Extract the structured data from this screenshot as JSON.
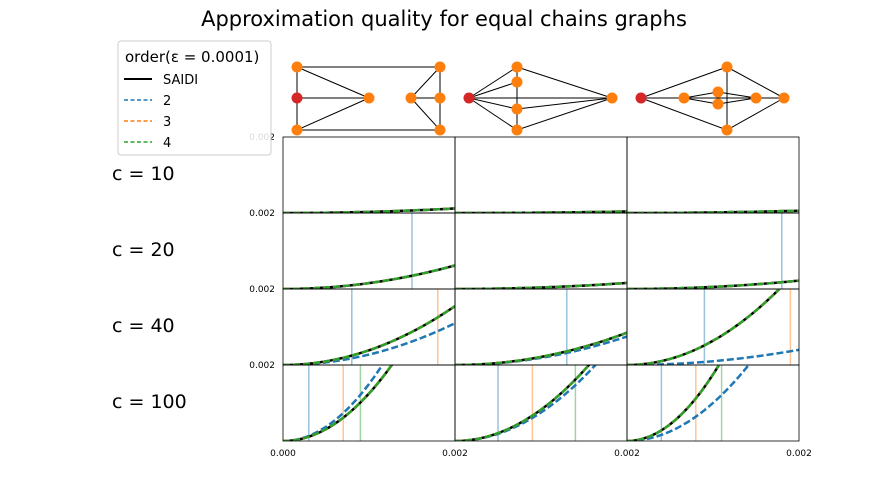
{
  "title": "Approximation quality for equal chains graphs",
  "legend": {
    "title": "order(ε = 0.0001)",
    "entries": [
      {
        "label": "SAIDI",
        "color": "#000000",
        "style": "solid"
      },
      {
        "label": "2",
        "color": "#1f77b4",
        "style": "dashed"
      },
      {
        "label": "3",
        "color": "#ff7f0e",
        "style": "dashed"
      },
      {
        "label": "4",
        "color": "#2ca02c",
        "style": "dashed"
      }
    ]
  },
  "colors": {
    "red_node": "#d62728",
    "orange_node": "#ff7f0e",
    "blue": "#1f77b4",
    "orange": "#ff7f0e",
    "green": "#2ca02c"
  },
  "chart_data": {
    "type": "line",
    "title": "Approximation quality for equal chains graphs",
    "row_labels": [
      "c = 10",
      "c = 20",
      "c = 40",
      "c = 100"
    ],
    "x_tick_labels": [
      "0.000",
      "0.002",
      "0.002",
      "0.002"
    ],
    "y_tick_label": "0.002",
    "xlim": [
      0,
      0.002
    ],
    "ylim": [
      0,
      0.002
    ],
    "series": [
      {
        "name": "SAIDI",
        "panels": [
          [
            0.00012,
            4e-05,
            6e-05
          ],
          [
            0.00062,
            0.00016,
            0.00022
          ],
          [
            0.00155,
            0.00085,
            0.00255
          ],
          [
            0.005,
            0.0033,
            0.007
          ]
        ]
      },
      {
        "name": "2",
        "panels": [
          [
            0.00012,
            4e-05,
            6e-05
          ],
          [
            0.00062,
            0.00016,
            0.00022
          ],
          [
            0.0011,
            0.00075,
            0.0004
          ],
          [
            0.006,
            0.003,
            0.004
          ]
        ]
      },
      {
        "name": "3",
        "panels": [
          [
            0.00012,
            4e-05,
            6e-05
          ],
          [
            0.00062,
            0.00016,
            0.00022
          ],
          [
            0.00155,
            0.00085,
            0.00255
          ],
          [
            0.005,
            0.0033,
            0.007
          ]
        ]
      },
      {
        "name": "4",
        "panels": [
          [
            0.00012,
            4e-05,
            6e-05
          ],
          [
            0.00062,
            0.00016,
            0.00022
          ],
          [
            0.00155,
            0.00085,
            0.00255
          ],
          [
            0.005,
            0.0033,
            0.007
          ]
        ]
      }
    ],
    "vlines": [
      [
        [],
        [],
        []
      ],
      [
        [
          {
            "series": "2",
            "x": 0.0015
          }
        ],
        [],
        [
          {
            "series": "2",
            "x": 0.0018
          }
        ]
      ],
      [
        [
          {
            "series": "2",
            "x": 0.0008
          },
          {
            "series": "3",
            "x": 0.0018
          }
        ],
        [
          {
            "series": "2",
            "x": 0.0013
          }
        ],
        [
          {
            "series": "2",
            "x": 0.0009
          },
          {
            "series": "3",
            "x": 0.0019
          }
        ]
      ],
      [
        [
          {
            "series": "2",
            "x": 0.0003
          },
          {
            "series": "3",
            "x": 0.0007
          },
          {
            "series": "4",
            "x": 0.0009
          }
        ],
        [
          {
            "series": "2",
            "x": 0.0005
          },
          {
            "series": "3",
            "x": 0.0009
          },
          {
            "series": "4",
            "x": 0.0014
          }
        ],
        [
          {
            "series": "2",
            "x": 0.0004
          },
          {
            "series": "3",
            "x": 0.0008
          },
          {
            "series": "4",
            "x": 0.0011
          }
        ]
      ]
    ]
  }
}
